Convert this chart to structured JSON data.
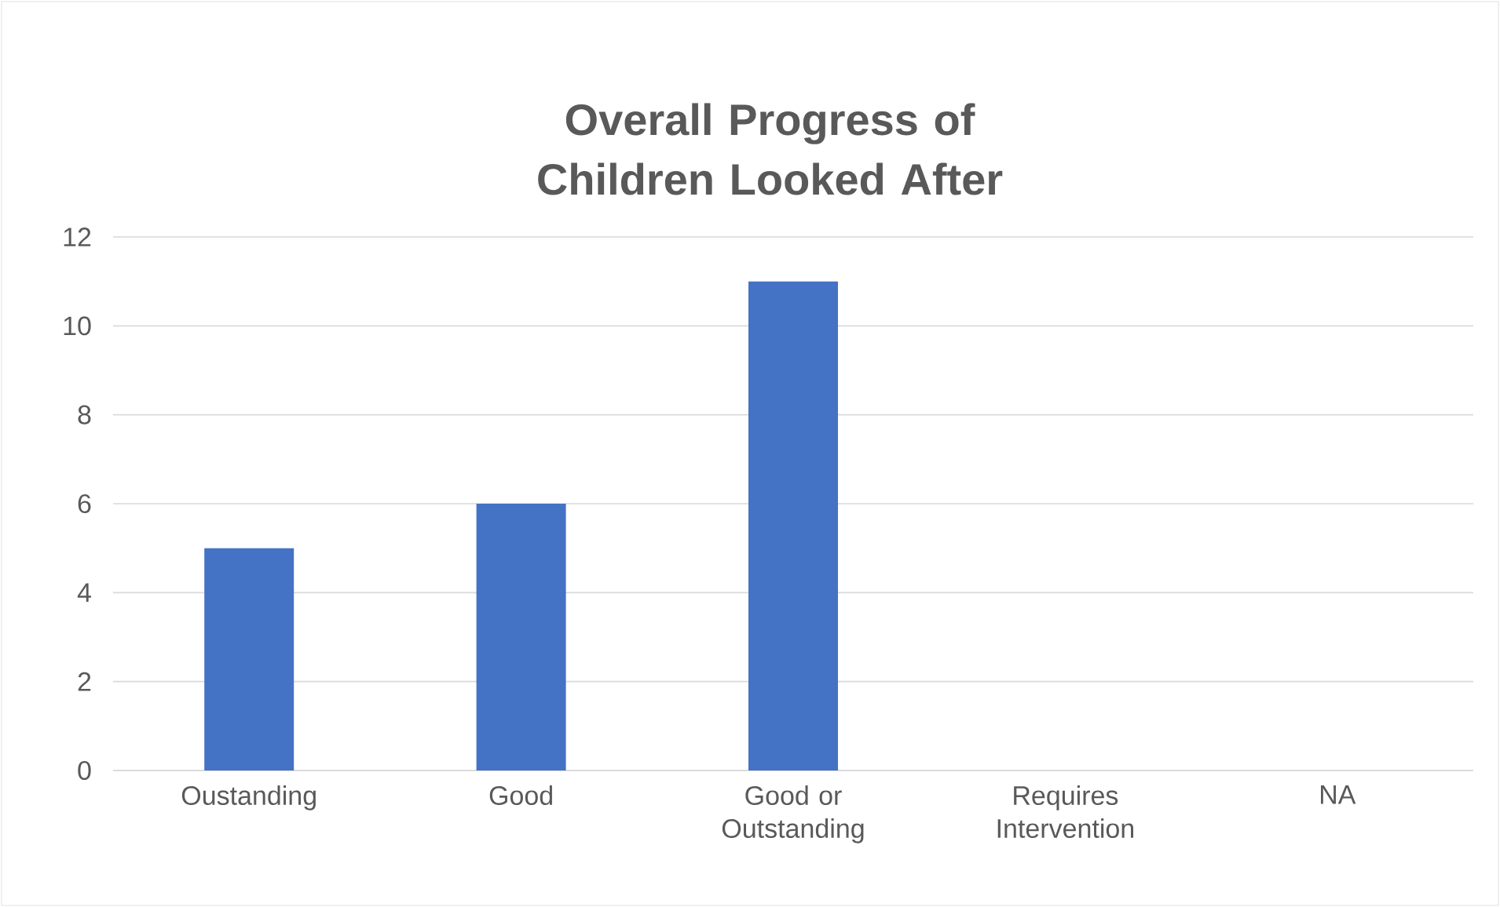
{
  "chart_data": {
    "type": "bar",
    "title": "Overall Progress of Children Looked After",
    "categories": [
      "Oustanding",
      "Good",
      "Good or Outstanding",
      "Requires Intervention",
      "NA"
    ],
    "values": [
      5,
      6,
      11,
      0,
      0
    ],
    "color": "#4472c4",
    "ylim": [
      0,
      12
    ],
    "yticks": [
      0,
      2,
      4,
      6,
      8,
      10,
      12
    ],
    "grid": "y"
  }
}
